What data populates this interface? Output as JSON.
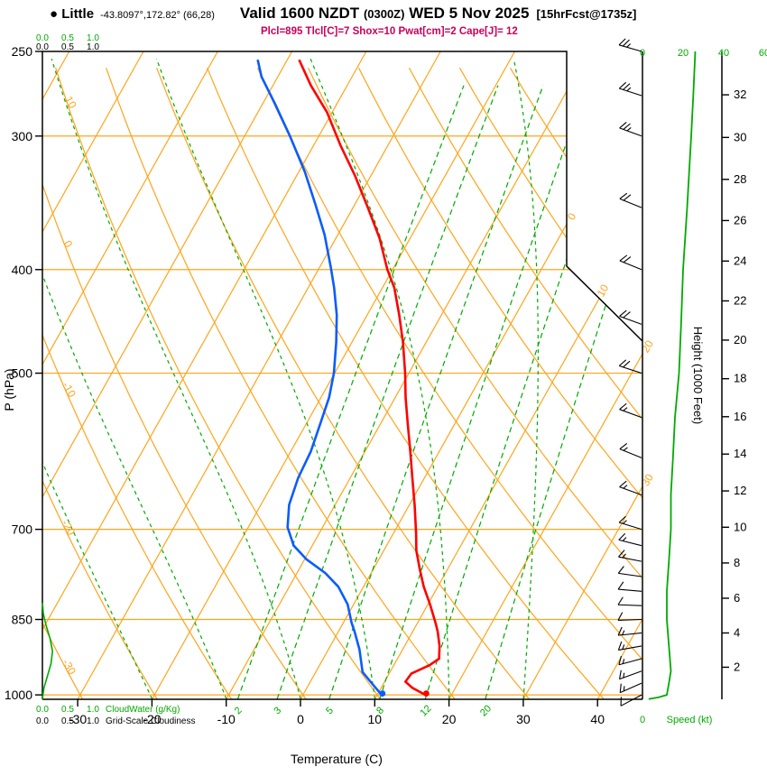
{
  "header": {
    "marker": "●",
    "station": "Little",
    "coords": "-43.8097°,172.82° (66,28)",
    "valid_prefix": "Valid 1600 NZDT",
    "valid_zulu": "(0300Z)",
    "valid_date": "WED 5 Nov 2025",
    "forecast_ref": "[15hrFcst@1735z]",
    "indices": "Plcl=895 Tlcl[C]=7 Shox=10 Pwat[cm]=2 Cape[J]= 12"
  },
  "colors": {
    "grid_orange": "#ffa41c",
    "line_green": "#00aa00",
    "temperature_red": "#fe0000",
    "dewpoint_blue": "#0a5cff",
    "indices_magenta": "#c8005a",
    "axis_black": "#000000"
  },
  "chart_data": {
    "type": "line",
    "chart_kind": "skew-t-log-p-sounding",
    "pressure_axis": {
      "label": "P (hPa)",
      "scale": "log",
      "top_hpa": 250,
      "bottom_hpa": 1010,
      "ticks": [
        250,
        300,
        400,
        500,
        700,
        850,
        1000
      ]
    },
    "temperature_axis": {
      "label": "Temperature (C)",
      "ticks": [
        -30,
        -20,
        -10,
        0,
        10,
        20,
        30,
        40
      ]
    },
    "height_axis": {
      "label": "Height (1000 Feet)",
      "ticks_kft": [
        2,
        4,
        6,
        8,
        10,
        12,
        14,
        16,
        18,
        20,
        22,
        24,
        26,
        28,
        30,
        32
      ]
    },
    "speed_axis": {
      "label": "Speed (kt)",
      "ticks_kt": [
        0,
        20,
        40,
        60
      ]
    },
    "cloudwater_axis": {
      "label": "CloudWater (g/Kg)",
      "ticks": [
        "0.0",
        "0.5",
        "1.0"
      ]
    },
    "cloudiness_axis": {
      "label": "Grid-Scale Cloudiness",
      "ticks": [
        "0.0",
        "0.5",
        "1.0"
      ]
    },
    "grid": {
      "isotherm_step_c": 10,
      "isotherm_range_c": [
        -90,
        40
      ],
      "dry_adiabat_step_c": 10,
      "dry_adiabat_range_c": [
        -40,
        100
      ],
      "dry_adiabat_edge_labels": [
        10,
        0,
        -10,
        -20,
        -30
      ],
      "isotherm_edge_labels": [
        0,
        10,
        20,
        30
      ],
      "mixing_ratio_lines_g_kg": [
        2,
        3,
        5,
        8,
        12,
        20
      ],
      "moist_adiabat_surface_temps_c": [
        -20,
        -10,
        0,
        10,
        20,
        30
      ]
    },
    "temperature_profile": {
      "name": "temperature",
      "color_key": "temperature_red",
      "points_p_hpa_t_c": [
        [
          1000,
          16.5
        ],
        [
          985,
          14.2
        ],
        [
          972,
          12.8
        ],
        [
          955,
          13.0
        ],
        [
          938,
          14.8
        ],
        [
          925,
          15.6
        ],
        [
          900,
          14.7
        ],
        [
          873,
          13.4
        ],
        [
          856,
          12.4
        ],
        [
          823,
          10.3
        ],
        [
          792,
          8.1
        ],
        [
          762,
          6.2
        ],
        [
          733,
          4.4
        ],
        [
          705,
          3.0
        ],
        [
          664,
          0.7
        ],
        [
          627,
          -1.6
        ],
        [
          592,
          -3.9
        ],
        [
          558,
          -6.3
        ],
        [
          527,
          -8.6
        ],
        [
          500,
          -10.5
        ],
        [
          468,
          -13.1
        ],
        [
          441,
          -15.7
        ],
        [
          416,
          -18.4
        ],
        [
          400,
          -20.7
        ],
        [
          374,
          -24.1
        ],
        [
          350,
          -28.0
        ],
        [
          327,
          -32.1
        ],
        [
          306,
          -36.4
        ],
        [
          285,
          -40.7
        ],
        [
          269,
          -44.9
        ],
        [
          255,
          -48.3
        ]
      ]
    },
    "dewpoint_profile": {
      "name": "dew point",
      "color_key": "dewpoint_blue",
      "points_p_hpa_t_c": [
        [
          1000,
          10.6
        ],
        [
          981,
          8.9
        ],
        [
          952,
          6.3
        ],
        [
          907,
          4.2
        ],
        [
          873,
          2.2
        ],
        [
          856,
          1.1
        ],
        [
          823,
          -0.8
        ],
        [
          792,
          -3.4
        ],
        [
          769,
          -6.2
        ],
        [
          747,
          -9.7
        ],
        [
          725,
          -12.5
        ],
        [
          697,
          -14.7
        ],
        [
          664,
          -16.2
        ],
        [
          627,
          -17.0
        ],
        [
          592,
          -17.3
        ],
        [
          558,
          -18.1
        ],
        [
          527,
          -18.9
        ],
        [
          500,
          -20.1
        ],
        [
          468,
          -22.1
        ],
        [
          441,
          -24.1
        ],
        [
          416,
          -26.5
        ],
        [
          398,
          -28.5
        ],
        [
          371,
          -31.8
        ],
        [
          347,
          -35.4
        ],
        [
          324,
          -39.2
        ],
        [
          300,
          -43.9
        ],
        [
          280,
          -48.3
        ],
        [
          264,
          -52.2
        ],
        [
          255,
          -53.9
        ]
      ]
    },
    "surface_dots": {
      "pressure_hpa": 997,
      "temperature_c": 16.5,
      "dewpoint_c": 10.6
    },
    "wind_barbs_p_dir_kt": [
      [
        250,
        286,
        26
      ],
      [
        275,
        288,
        25
      ],
      [
        300,
        290,
        24
      ],
      [
        350,
        292,
        22
      ],
      [
        400,
        292,
        20
      ],
      [
        450,
        290,
        19
      ],
      [
        500,
        288,
        18
      ],
      [
        550,
        290,
        16
      ],
      [
        600,
        292,
        15
      ],
      [
        650,
        290,
        14
      ],
      [
        700,
        287,
        14
      ],
      [
        725,
        284,
        13
      ],
      [
        750,
        281,
        13
      ],
      [
        775,
        278,
        12
      ],
      [
        800,
        275,
        12
      ],
      [
        825,
        272,
        12
      ],
      [
        850,
        268,
        12
      ],
      [
        875,
        264,
        13
      ],
      [
        900,
        260,
        13
      ],
      [
        925,
        255,
        14
      ],
      [
        950,
        250,
        14
      ],
      [
        975,
        246,
        13
      ],
      [
        1000,
        242,
        12
      ]
    ],
    "speed_profile_p_kt": [
      [
        250,
        26
      ],
      [
        275,
        25
      ],
      [
        300,
        24
      ],
      [
        350,
        22
      ],
      [
        400,
        20
      ],
      [
        450,
        19
      ],
      [
        500,
        18
      ],
      [
        550,
        16
      ],
      [
        600,
        15
      ],
      [
        650,
        14
      ],
      [
        700,
        14
      ],
      [
        750,
        13
      ],
      [
        800,
        12
      ],
      [
        850,
        12
      ],
      [
        900,
        13
      ],
      [
        950,
        14
      ],
      [
        975,
        13
      ],
      [
        1000,
        12
      ],
      [
        1005,
        8
      ],
      [
        1009,
        3
      ]
    ],
    "cloud_water_profile_p_gkg": [
      [
        1009,
        0.0
      ],
      [
        985,
        0.03
      ],
      [
        960,
        0.1
      ],
      [
        935,
        0.17
      ],
      [
        910,
        0.2
      ],
      [
        885,
        0.15
      ],
      [
        860,
        0.07
      ],
      [
        840,
        0.02
      ],
      [
        820,
        0.0
      ]
    ]
  }
}
